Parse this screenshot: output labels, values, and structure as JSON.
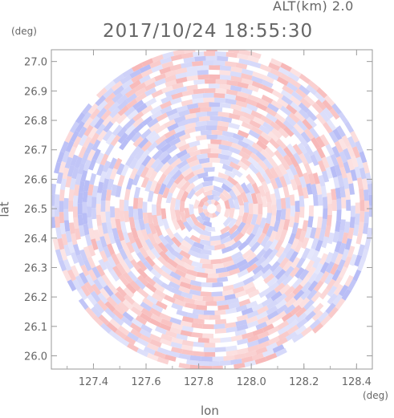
{
  "header": {
    "altitude_label": "ALT(km) 2.0",
    "timestamp": "2017/10/24 18:55:30"
  },
  "axes": {
    "y_unit": "(deg)",
    "x_unit": "(deg)",
    "x_label": "lon",
    "y_label": "lat"
  },
  "colors": {
    "positive": "#f7b4b4",
    "negative": "#b4b9f5",
    "neutral": "#ffffff",
    "axis": "#999999"
  },
  "chart_data": {
    "type": "heatmap",
    "title": "2017/10/24 18:55:30",
    "subtitle": "ALT(km) 2.0",
    "xlabel": "lon",
    "ylabel": "lat",
    "x_unit": "(deg)",
    "y_unit": "(deg)",
    "xlim": [
      127.24,
      128.46
    ],
    "ylim": [
      25.955,
      27.04
    ],
    "x_ticks": [
      127.4,
      127.6,
      127.8,
      128.0,
      128.2,
      128.4
    ],
    "x_tick_labels": [
      "127.4",
      "127.6",
      "127.8",
      "128.0",
      "128.2",
      "128.4"
    ],
    "y_ticks": [
      26.0,
      26.1,
      26.2,
      26.3,
      26.4,
      26.5,
      26.6,
      26.7,
      26.8,
      26.9,
      27.0
    ],
    "y_tick_labels": [
      "26.0",
      "26.1",
      "26.2",
      "26.3",
      "26.4",
      "26.5",
      "26.6",
      "26.7",
      "26.8",
      "26.9",
      "27.0"
    ],
    "center": {
      "lon": 127.85,
      "lat": 26.5
    },
    "radius_deg": 0.545,
    "pattern": "range-azimuth polar scan with alternating positive (red) and negative (blue) values",
    "grid": false,
    "legend": "none"
  }
}
